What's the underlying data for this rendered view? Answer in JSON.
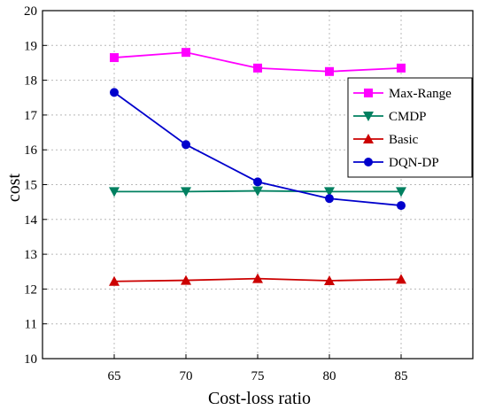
{
  "chart_data": {
    "type": "line",
    "title": "",
    "xlabel": "Cost-loss ratio",
    "ylabel": "cost",
    "x": [
      65,
      70,
      75,
      80,
      85
    ],
    "xlim": [
      60,
      90
    ],
    "ylim": [
      10,
      20
    ],
    "xticks": [
      65,
      70,
      75,
      80,
      85
    ],
    "yticks": [
      10,
      11,
      12,
      13,
      14,
      15,
      16,
      17,
      18,
      19,
      20
    ],
    "grid": true,
    "legend_position": "right",
    "series": [
      {
        "name": "Max-Range",
        "color": "#ff00ff",
        "marker": "square",
        "values": [
          18.65,
          18.8,
          18.35,
          18.25,
          18.35
        ]
      },
      {
        "name": "CMDP",
        "color": "#008060",
        "marker": "triangle-down",
        "values": [
          14.8,
          14.8,
          14.82,
          14.8,
          14.8
        ]
      },
      {
        "name": "Basic",
        "color": "#cc0000",
        "marker": "triangle-up",
        "values": [
          12.22,
          12.25,
          12.3,
          12.24,
          12.28
        ]
      },
      {
        "name": "DQN-DP",
        "color": "#0000cc",
        "marker": "circle",
        "values": [
          17.65,
          16.15,
          15.08,
          14.6,
          14.4
        ]
      }
    ]
  }
}
